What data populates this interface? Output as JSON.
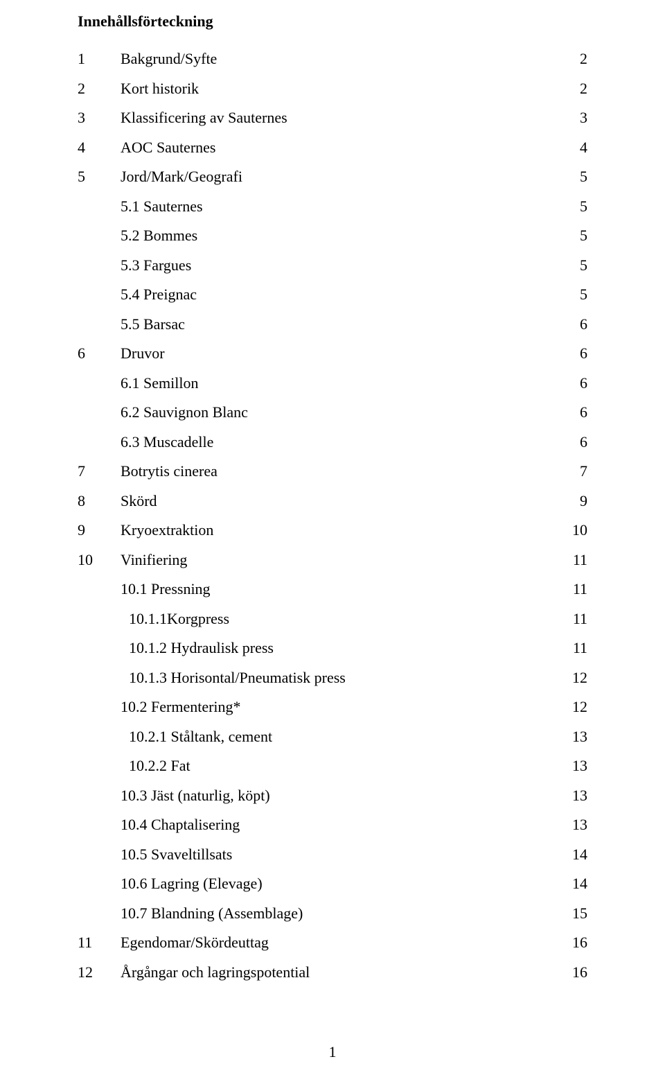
{
  "title": "Innehållsförteckning",
  "page_number": "1",
  "entries": [
    {
      "num": "1",
      "label": "Bakgrund/Syfte",
      "page": "2",
      "indent": 0
    },
    {
      "num": "2",
      "label": "Kort historik",
      "page": "2",
      "indent": 0
    },
    {
      "num": "3",
      "label": "Klassificering av Sauternes",
      "page": "3",
      "indent": 0
    },
    {
      "num": "4",
      "label": "AOC Sauternes",
      "page": "4",
      "indent": 0
    },
    {
      "num": "5",
      "label": "Jord/Mark/Geografi",
      "page": "5",
      "indent": 0
    },
    {
      "num": "",
      "label": "5.1  Sauternes",
      "page": "5",
      "indent": 1
    },
    {
      "num": "",
      "label": "5.2  Bommes",
      "page": "5",
      "indent": 1
    },
    {
      "num": "",
      "label": "5.3  Fargues",
      "page": "5",
      "indent": 1
    },
    {
      "num": "",
      "label": "5.4  Preignac",
      "page": "5",
      "indent": 1
    },
    {
      "num": "",
      "label": "5.5  Barsac",
      "page": "6",
      "indent": 1
    },
    {
      "num": "6",
      "label": "Druvor",
      "page": "6",
      "indent": 0
    },
    {
      "num": "",
      "label": "6.1  Semillon",
      "page": "6",
      "indent": 1
    },
    {
      "num": "",
      "label": "6.2  Sauvignon Blanc",
      "page": "6",
      "indent": 1
    },
    {
      "num": "",
      "label": "6.3  Muscadelle",
      "page": "6",
      "indent": 1
    },
    {
      "num": "7",
      "label": "Botrytis cinerea",
      "page": "7",
      "indent": 0
    },
    {
      "num": "8",
      "label": "Skörd",
      "page": "9",
      "indent": 0
    },
    {
      "num": "9",
      "label": "Kryoextraktion",
      "page": "10",
      "indent": 0
    },
    {
      "num": "10",
      "label": "Vinifiering",
      "page": "11",
      "indent": 0
    },
    {
      "num": "",
      "label": "10.1 Pressning",
      "page": "11",
      "indent": 1
    },
    {
      "num": "",
      "label": "10.1.1Korgpress",
      "page": "11",
      "indent": 2
    },
    {
      "num": "",
      "label": "10.1.2 Hydraulisk press",
      "page": "11",
      "indent": 2
    },
    {
      "num": "",
      "label": "10.1.3 Horisontal/Pneumatisk press",
      "page": "12",
      "indent": 2
    },
    {
      "num": "",
      "label": "10.2 Fermentering*",
      "page": "12",
      "indent": 1
    },
    {
      "num": "",
      "label": "10.2.1 Ståltank, cement",
      "page": "13",
      "indent": 2
    },
    {
      "num": "",
      "label": "10.2.2 Fat",
      "page": "13",
      "indent": 2
    },
    {
      "num": "",
      "label": "10.3 Jäst (naturlig, köpt)",
      "page": "13",
      "indent": 1
    },
    {
      "num": "",
      "label": "10.4 Chaptalisering",
      "page": "13",
      "indent": 1
    },
    {
      "num": "",
      "label": "10.5 Svaveltillsats",
      "page": "14",
      "indent": 1
    },
    {
      "num": "",
      "label": "10.6 Lagring (Elevage)",
      "page": "14",
      "indent": 1
    },
    {
      "num": "",
      "label": "10.7 Blandning (Assemblage)",
      "page": "15",
      "indent": 1
    },
    {
      "num": "11",
      "label": "Egendomar/Skördeuttag",
      "page": "16",
      "indent": 0
    },
    {
      "num": "12",
      "label": "Årgångar och lagringspotential",
      "page": "16",
      "indent": 0
    }
  ],
  "colors": {
    "background": "#ffffff",
    "text": "#000000"
  },
  "typography": {
    "font_family": "Times New Roman",
    "body_size_pt": 16,
    "title_weight": "bold"
  }
}
